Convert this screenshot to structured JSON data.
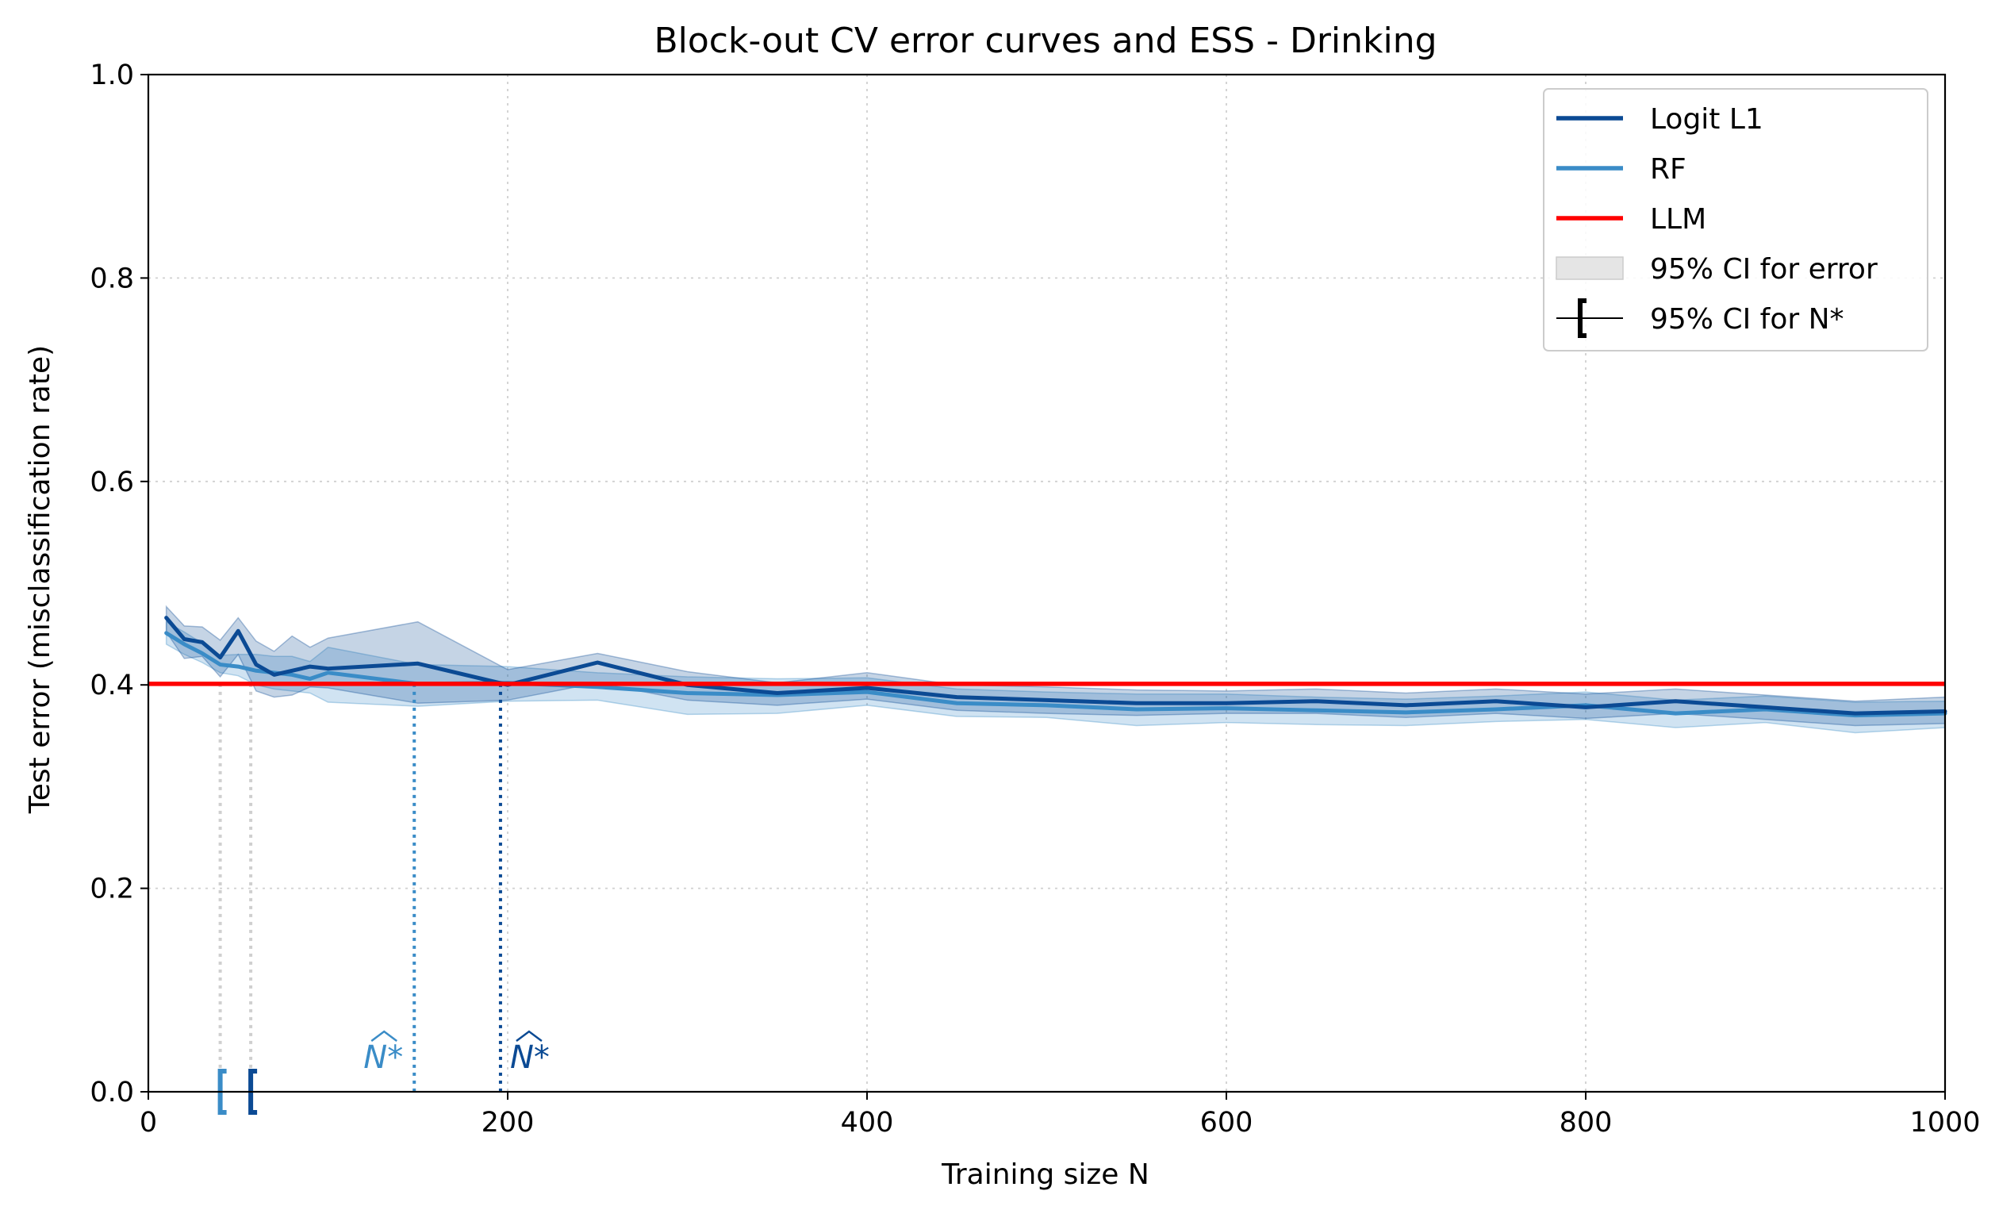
{
  "chart_data": {
    "type": "line",
    "title": "Block-out CV error curves and ESS - Drinking",
    "xlabel": "Training size N",
    "ylabel": "Test error (misclassification rate)",
    "xlim": [
      0,
      1000
    ],
    "ylim": [
      0,
      1.0
    ],
    "xticks": [
      0,
      200,
      400,
      600,
      800,
      1000
    ],
    "xtick_labels": [
      "0",
      "200",
      "400",
      "600",
      "800",
      "1000"
    ],
    "yticks": [
      0,
      0.2,
      0.4,
      0.6,
      0.8,
      1.0
    ],
    "ytick_labels": [
      "0.0",
      "0.2",
      "0.4",
      "0.6",
      "0.8",
      "1.0"
    ],
    "grid": true,
    "legend_position": "top-right",
    "series": [
      {
        "name": "Logit L1",
        "color": "#0b4a94",
        "x": [
          10,
          20,
          30,
          40,
          50,
          60,
          70,
          80,
          90,
          100,
          150,
          200,
          250,
          300,
          350,
          400,
          450,
          500,
          550,
          600,
          650,
          700,
          750,
          800,
          850,
          900,
          950,
          1000
        ],
        "values": [
          0.466,
          0.445,
          0.442,
          0.427,
          0.453,
          0.42,
          0.41,
          0.414,
          0.418,
          0.416,
          0.421,
          0.4,
          0.422,
          0.4,
          0.392,
          0.397,
          0.388,
          0.385,
          0.382,
          0.382,
          0.384,
          0.38,
          0.384,
          0.378,
          0.384,
          0.378,
          0.372,
          0.374
        ],
        "ci_lower": [
          0.452,
          0.426,
          0.428,
          0.408,
          0.43,
          0.394,
          0.388,
          0.39,
          0.398,
          0.397,
          0.382,
          0.385,
          0.402,
          0.385,
          0.38,
          0.386,
          0.375,
          0.372,
          0.37,
          0.372,
          0.372,
          0.368,
          0.372,
          0.367,
          0.372,
          0.366,
          0.36,
          0.362
        ],
        "ci_upper": [
          0.477,
          0.458,
          0.457,
          0.444,
          0.466,
          0.443,
          0.433,
          0.448,
          0.437,
          0.446,
          0.462,
          0.415,
          0.431,
          0.413,
          0.402,
          0.412,
          0.4,
          0.398,
          0.395,
          0.394,
          0.396,
          0.392,
          0.396,
          0.391,
          0.396,
          0.39,
          0.384,
          0.388
        ]
      },
      {
        "name": "RF",
        "color": "#3a8cc7",
        "x": [
          10,
          20,
          30,
          40,
          50,
          60,
          70,
          80,
          90,
          100,
          150,
          200,
          250,
          300,
          350,
          400,
          450,
          500,
          550,
          600,
          650,
          700,
          750,
          800,
          850,
          900,
          950,
          1000
        ],
        "values": [
          0.451,
          0.44,
          0.431,
          0.42,
          0.418,
          0.414,
          0.412,
          0.41,
          0.406,
          0.412,
          0.401,
          0.402,
          0.398,
          0.392,
          0.39,
          0.393,
          0.382,
          0.38,
          0.376,
          0.377,
          0.375,
          0.373,
          0.376,
          0.38,
          0.372,
          0.376,
          0.37,
          0.372
        ],
        "ci_lower": [
          0.44,
          0.43,
          0.422,
          0.412,
          0.409,
          0.4,
          0.396,
          0.394,
          0.392,
          0.383,
          0.379,
          0.384,
          0.385,
          0.371,
          0.372,
          0.38,
          0.369,
          0.368,
          0.36,
          0.363,
          0.361,
          0.36,
          0.364,
          0.366,
          0.358,
          0.363,
          0.353,
          0.358
        ],
        "ci_upper": [
          0.462,
          0.452,
          0.441,
          0.429,
          0.43,
          0.43,
          0.428,
          0.428,
          0.423,
          0.437,
          0.42,
          0.418,
          0.412,
          0.408,
          0.406,
          0.407,
          0.396,
          0.393,
          0.391,
          0.391,
          0.388,
          0.386,
          0.389,
          0.393,
          0.385,
          0.389,
          0.383,
          0.384
        ]
      }
    ],
    "reference_line": {
      "name": "LLM",
      "y": 0.401,
      "color": "#ff0000"
    },
    "n_star": [
      {
        "series": "RF",
        "value": 148,
        "ci_lower": 40,
        "label": "N*",
        "color": "#3a8cc7"
      },
      {
        "series": "Logit L1",
        "value": 196,
        "ci_lower": 57,
        "label": "N*",
        "color": "#0b4a94"
      }
    ],
    "legend": [
      {
        "label": "Logit L1",
        "kind": "line",
        "color": "#0b4a94"
      },
      {
        "label": "RF",
        "kind": "line",
        "color": "#3a8cc7"
      },
      {
        "label": "LLM",
        "kind": "line",
        "color": "#ff0000"
      },
      {
        "label": "95% CI for error",
        "kind": "patch",
        "color": "#e5e5e5"
      },
      {
        "label": "95% CI for N*",
        "kind": "bracket",
        "color": "#000000"
      }
    ]
  }
}
